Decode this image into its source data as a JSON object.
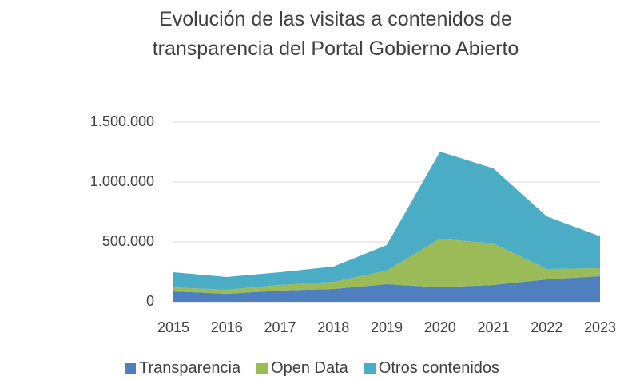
{
  "chart_data": {
    "type": "stacked_area",
    "title": "Evolución de las visitas a contenidos de transparencia del Portal Gobierno Abierto",
    "categories": [
      "2015",
      "2016",
      "2017",
      "2018",
      "2019",
      "2020",
      "2021",
      "2022",
      "2023"
    ],
    "series": [
      {
        "name": "Transparencia",
        "color": "#4e7fbf",
        "values": [
          87000,
          67000,
          93000,
          107000,
          147000,
          120000,
          140000,
          187000,
          213000
        ]
      },
      {
        "name": "Open Data",
        "color": "#9bbb59",
        "values": [
          33000,
          33000,
          47000,
          60000,
          113000,
          407000,
          347000,
          86000,
          67000
        ]
      },
      {
        "name": "Otros contenidos",
        "color": "#4bacc6",
        "values": [
          127000,
          107000,
          107000,
          126000,
          213000,
          726000,
          626000,
          440000,
          267000
        ]
      }
    ],
    "ylim": [
      0,
      1500000
    ],
    "yticks": [
      0,
      {
        "value": 500000,
        "label": "500.000"
      },
      {
        "value": 1000000,
        "label": "1.000.000"
      },
      {
        "value": 1500000,
        "label": "1.500.000"
      }
    ],
    "grid": true,
    "legend": "bottom"
  }
}
